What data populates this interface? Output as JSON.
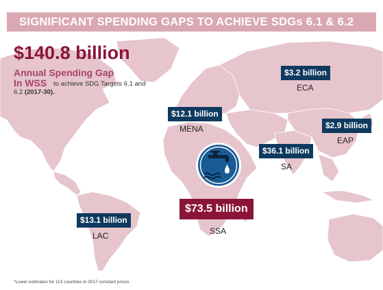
{
  "title": "SIGNIFICANT SPENDING GAPS TO ACHIEVE SDGs 6.1 & 6.2",
  "total": "$140.8 billion",
  "gap_label_line1": "Annual Spending Gap",
  "gap_label_line2": "In WSS",
  "gap_desc_part1": "to achieve SDG Targets 6.1 and 6.2",
  "gap_desc_years": "(2017-30).",
  "regions": {
    "eca": {
      "value": "$3.2 billion",
      "name": "ECA"
    },
    "mena": {
      "value": "$12.1 billion",
      "name": "MENA"
    },
    "eap": {
      "value": "$2.9 billion",
      "name": "EAP"
    },
    "sa": {
      "value": "$36.1 billion",
      "name": "SA"
    },
    "ssa": {
      "value": "$73.5 billion",
      "name": "SSA"
    },
    "lac": {
      "value": "$13.1 billion",
      "name": "LAC"
    }
  },
  "footnote": "*Lower estimates for 113 countries in 2017 constant prices.",
  "colors": {
    "land": "#e6c5cd",
    "ocean": "#ffffff",
    "accent": "#8a1538",
    "badge": "#0f3a5f",
    "title_bar": "#d9a8b3",
    "icon": "#1a5b94"
  },
  "icon": "water-tap-icon"
}
